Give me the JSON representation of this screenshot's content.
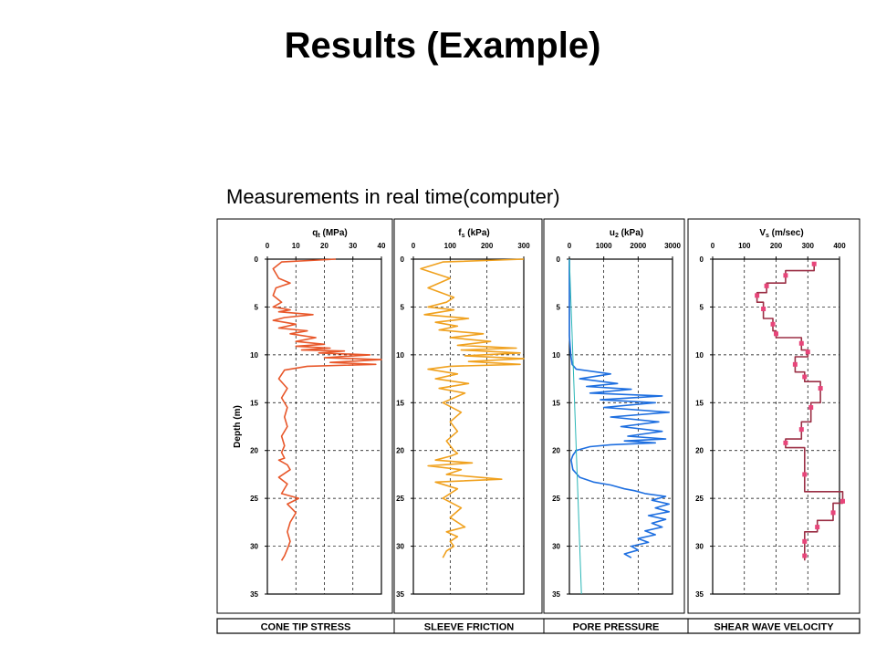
{
  "slide": {
    "title": "Results (Example)",
    "subtitle": "Measurements in real time(computer)"
  },
  "colors": {
    "qt": "#E8572A",
    "fs": "#F0A11E",
    "u2": "#1E6FE0",
    "u0": "#2AB6B6",
    "vs_line": "#9B2F45",
    "vs_marker": "#E8457A",
    "grid": "#000000"
  },
  "footer_labels": [
    "CONE TIP STRESS",
    "SLEEVE FRICTION",
    "PORE PRESSURE",
    "SHEAR WAVE VELOCITY"
  ],
  "chart_data": [
    {
      "type": "line",
      "title_main": "q",
      "title_sub": "t",
      "title_unit": " (MPa)",
      "ylabel": "Depth (m)",
      "xlim": [
        0,
        40
      ],
      "xticks": [
        0,
        10,
        20,
        30,
        40
      ],
      "ylim": [
        0,
        35
      ],
      "yticks": [
        0,
        5,
        10,
        15,
        20,
        25,
        30,
        35
      ],
      "y_inverted": true,
      "grid": true,
      "footer": "CONE TIP STRESS",
      "series": [
        {
          "color_key": "qt",
          "x": [
            24,
            5,
            2,
            4,
            8,
            3,
            2,
            5,
            2,
            8,
            4,
            16,
            6,
            2,
            10,
            4,
            14,
            8,
            17,
            10,
            20,
            10,
            22,
            12,
            27,
            18,
            36,
            20,
            40,
            22,
            38,
            14,
            6,
            4,
            7,
            5,
            7,
            6,
            7,
            5,
            6,
            5,
            6,
            4,
            7,
            8,
            4,
            7,
            5,
            11,
            7,
            10,
            8,
            7,
            8,
            7,
            6,
            5
          ],
          "y": [
            0,
            0.3,
            1,
            2,
            2.5,
            3,
            3.8,
            4.5,
            5,
            5.3,
            5.5,
            5.8,
            6.1,
            6.4,
            6.8,
            7.2,
            7.5,
            7.8,
            8.2,
            8.6,
            8.9,
            9.1,
            9.3,
            9.5,
            9.6,
            9.8,
            10,
            10.3,
            10.5,
            10.8,
            11,
            11.2,
            11.6,
            12.5,
            13.5,
            14.5,
            15.5,
            16.5,
            17.5,
            18.5,
            19.5,
            20.2,
            20.8,
            21,
            21.5,
            22,
            22.8,
            23.5,
            24.5,
            25,
            25.6,
            26.5,
            27.5,
            28.5,
            29.5,
            30.3,
            31,
            31.5
          ]
        }
      ]
    },
    {
      "type": "line",
      "title_main": "f",
      "title_sub": "s",
      "title_unit": " (kPa)",
      "xlim": [
        0,
        300
      ],
      "xticks": [
        0,
        100,
        200,
        300
      ],
      "ylim": [
        0,
        35
      ],
      "yticks": [
        0,
        5,
        10,
        15,
        20,
        25,
        30,
        35
      ],
      "y_inverted": true,
      "grid": true,
      "footer": "SLEEVE FRICTION",
      "series": [
        {
          "color_key": "fs",
          "x": [
            300,
            80,
            20,
            100,
            40,
            110,
            90,
            40,
            110,
            30,
            150,
            60,
            120,
            70,
            190,
            100,
            210,
            120,
            280,
            130,
            290,
            140,
            300,
            150,
            290,
            100,
            40,
            120,
            60,
            150,
            70,
            140,
            80,
            130,
            100,
            120,
            90,
            110,
            120,
            100,
            60,
            160,
            40,
            130,
            90,
            240,
            60,
            120,
            80,
            130,
            100,
            140,
            90,
            120,
            100,
            110,
            90,
            80
          ],
          "y": [
            0,
            0.3,
            1,
            2,
            3,
            4,
            4.5,
            5,
            5.3,
            5.8,
            6.2,
            6.6,
            7,
            7.4,
            7.8,
            8.2,
            8.6,
            9,
            9.3,
            9.5,
            9.8,
            10.1,
            10.4,
            10.7,
            11,
            11.2,
            11.5,
            12,
            12.5,
            13,
            13.5,
            14,
            15,
            16,
            17,
            18,
            19,
            20,
            20.3,
            20.6,
            21,
            21.3,
            21.6,
            22,
            22.5,
            23,
            23.3,
            24,
            25,
            26,
            27,
            28,
            28.5,
            29,
            29.5,
            30,
            30.5,
            31.2
          ]
        }
      ]
    },
    {
      "type": "line",
      "title_main": "u",
      "title_sub": "2",
      "title_unit": " (kPa)",
      "xlim": [
        0,
        3000
      ],
      "xticks": [
        0,
        1000,
        2000,
        3000
      ],
      "ylim": [
        0,
        35
      ],
      "yticks": [
        0,
        5,
        10,
        15,
        20,
        25,
        30,
        35
      ],
      "y_inverted": true,
      "grid": true,
      "footer": "PORE PRESSURE",
      "series": [
        {
          "color_key": "u2",
          "x": [
            0,
            0,
            40,
            80,
            200,
            1200,
            300,
            1400,
            500,
            1800,
            600,
            2700,
            900,
            2500,
            1000,
            2900,
            1200,
            2600,
            1500,
            2700,
            1700,
            2800,
            1600,
            2500,
            1200,
            600,
            200,
            100,
            50,
            100,
            300,
            700,
            1200,
            1600,
            1900,
            2200,
            2800,
            2400,
            2900,
            2500,
            2900,
            2300,
            2800,
            2400,
            2700,
            2200,
            2500,
            2000,
            2300,
            1800,
            2000,
            1600,
            1800
          ],
          "y": [
            0,
            8,
            10,
            11,
            11.5,
            12,
            12.5,
            13,
            13.3,
            13.6,
            14,
            14.3,
            14.7,
            15,
            15.5,
            16,
            16.5,
            17,
            17.5,
            18,
            18.5,
            18.8,
            19,
            19.2,
            19.4,
            19.6,
            20,
            20.5,
            21,
            22,
            22.8,
            23.3,
            23.6,
            24,
            24.2,
            24.5,
            24.8,
            25.2,
            25.6,
            26,
            26.4,
            26.8,
            27.2,
            27.6,
            28,
            28.4,
            28.8,
            29.2,
            29.6,
            30,
            30.4,
            30.8,
            31.2
          ]
        },
        {
          "color_key": "u0",
          "x": [
            0,
            350
          ],
          "y": [
            0,
            35
          ]
        }
      ]
    },
    {
      "type": "line",
      "title_main": "V",
      "title_sub": "s",
      "title_unit": " (m/sec)",
      "xlim": [
        0,
        400
      ],
      "xticks": [
        0,
        100,
        200,
        300,
        400
      ],
      "ylim": [
        0,
        35
      ],
      "yticks": [
        0,
        5,
        10,
        15,
        20,
        25,
        30,
        35
      ],
      "y_inverted": true,
      "grid": true,
      "footer": "SHEAR WAVE VELOCITY",
      "series": [
        {
          "color_key": "vs_line",
          "markers": true,
          "x": [
            320,
            320,
            230,
            230,
            170,
            170,
            140,
            140,
            160,
            160,
            190,
            190,
            200,
            200,
            280,
            280,
            300,
            300,
            260,
            260,
            290,
            290,
            340,
            340,
            310,
            310,
            280,
            280,
            230,
            230,
            290,
            290,
            410,
            410,
            380,
            380,
            330,
            330,
            290,
            290
          ],
          "y": [
            0.5,
            1.2,
            1.2,
            2.5,
            2.5,
            3.5,
            3.5,
            4.5,
            4.5,
            6.2,
            6.2,
            7.5,
            7.5,
            8.2,
            8.2,
            9.5,
            9.5,
            10.2,
            10.2,
            11.8,
            11.8,
            12.8,
            12.8,
            15,
            15,
            17,
            17,
            18.8,
            18.8,
            19.7,
            19.7,
            24.3,
            24.3,
            25.5,
            25.5,
            27.3,
            27.3,
            28.5,
            28.5,
            31.5
          ],
          "marker_x": [
            320,
            230,
            170,
            140,
            160,
            190,
            200,
            280,
            300,
            260,
            290,
            340,
            310,
            280,
            230,
            290,
            410,
            380,
            330,
            290,
            290
          ],
          "marker_y": [
            0.5,
            1.7,
            2.8,
            3.8,
            5.2,
            6.8,
            7.8,
            8.8,
            9.7,
            11,
            12.3,
            13.5,
            15.5,
            17.8,
            19.2,
            22.5,
            25.3,
            26.5,
            28,
            29.5,
            31
          ]
        }
      ]
    }
  ]
}
